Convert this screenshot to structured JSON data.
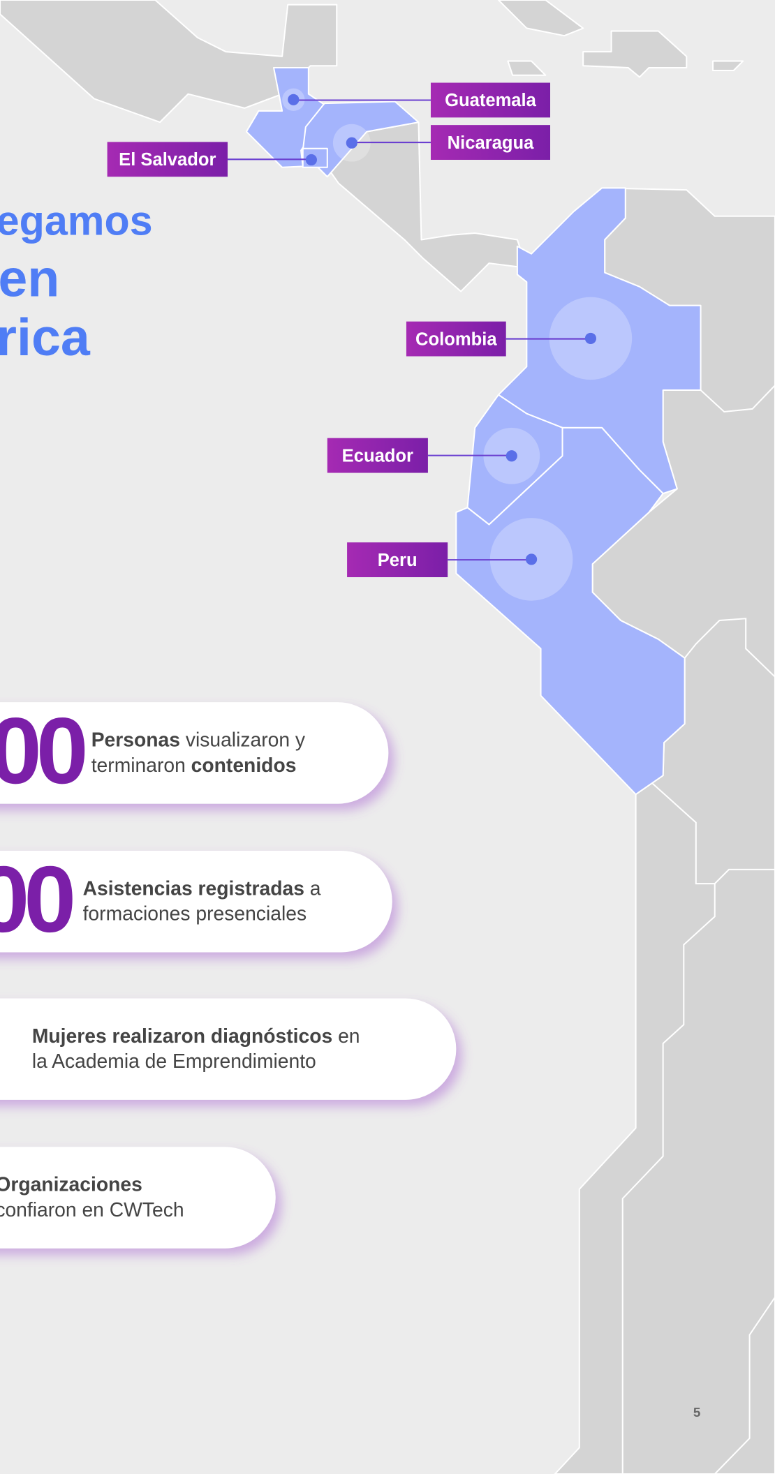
{
  "heading": {
    "lines": [
      "egamos",
      "en",
      "rica"
    ]
  },
  "countries": [
    {
      "label": "Guatemala"
    },
    {
      "label": "Nicaragua"
    },
    {
      "label": "El Salvador"
    },
    {
      "label": "Colombia"
    },
    {
      "label": "Ecuador"
    },
    {
      "label": "Peru"
    }
  ],
  "stats": [
    {
      "number": "00",
      "lines": [
        [
          {
            "text": "Personas",
            "bold": true
          },
          {
            "text": " visualizaron y",
            "bold": false
          }
        ],
        [
          {
            "text": "terminaron ",
            "bold": false
          },
          {
            "text": "contenidos",
            "bold": true
          }
        ]
      ]
    },
    {
      "number": "00",
      "lines": [
        [
          {
            "text": "Asistencias registradas",
            "bold": true
          },
          {
            "text": " a",
            "bold": false
          }
        ],
        [
          {
            "text": "formaciones presenciales",
            "bold": false
          }
        ]
      ]
    },
    {
      "lines": [
        [
          {
            "text": "Mujeres realizaron diagnósticos",
            "bold": true
          },
          {
            "text": " en",
            "bold": false
          }
        ],
        [
          {
            "text": "la Academia de Emprendimiento",
            "bold": false
          }
        ]
      ]
    },
    {
      "lines": [
        [
          {
            "text": "Organizaciones",
            "bold": true
          }
        ],
        [
          {
            "text": "confiaron en CWTech",
            "bold": false
          }
        ]
      ]
    }
  ],
  "page_number": "5"
}
